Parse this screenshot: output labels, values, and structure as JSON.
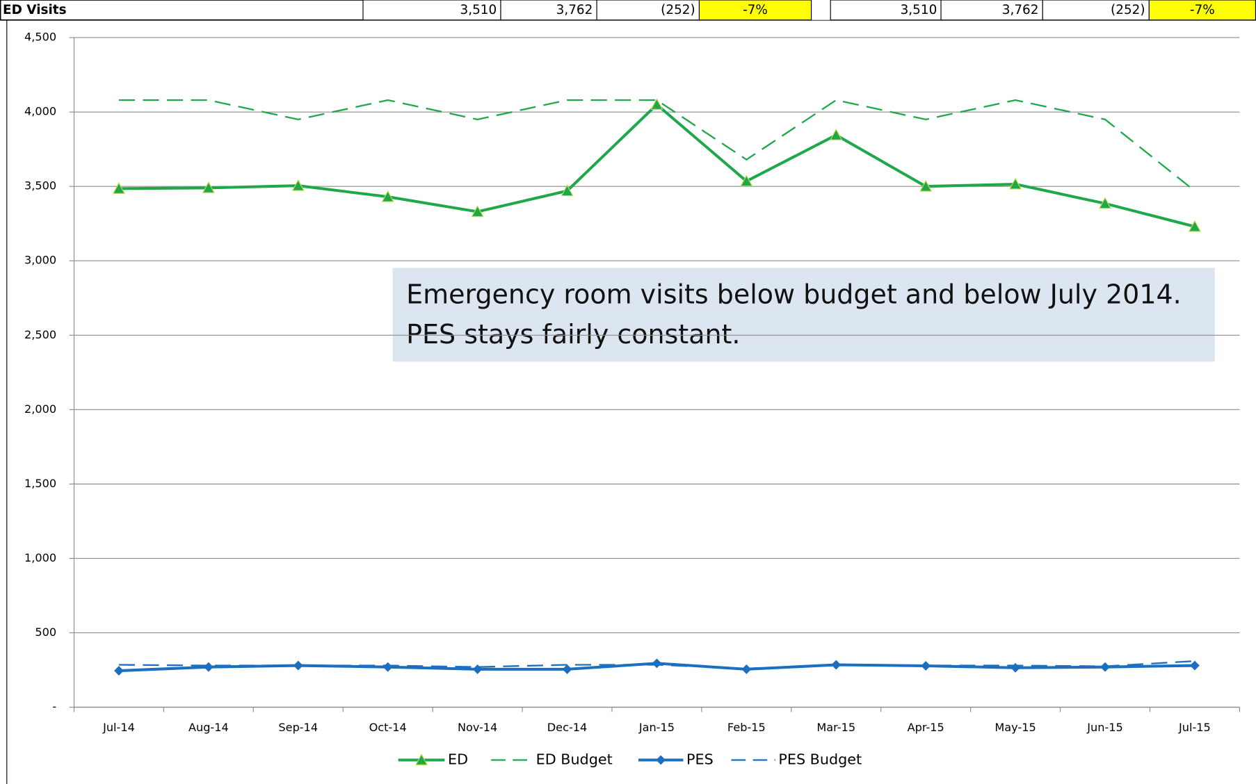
{
  "header": {
    "label": "ED Visits",
    "cells": [
      "3,510",
      "3,762",
      "(252)",
      "-7%",
      "3,510",
      "3,762",
      "(252)",
      "-7%"
    ]
  },
  "chart_data": {
    "type": "line",
    "categories": [
      "Jul-14",
      "Aug-14",
      "Sep-14",
      "Oct-14",
      "Nov-14",
      "Dec-14",
      "Jan-15",
      "Feb-15",
      "Mar-15",
      "Apr-15",
      "May-15",
      "Jun-15",
      "Jul-15"
    ],
    "series": [
      {
        "name": "ED",
        "color": "#1fa84a",
        "marker": "triangle",
        "dashed": false,
        "values": [
          3485,
          3490,
          3505,
          3430,
          3330,
          3470,
          4050,
          3535,
          3845,
          3500,
          3515,
          3385,
          3230
        ]
      },
      {
        "name": "ED Budget",
        "color": "#1fa84a",
        "marker": "none",
        "dashed": true,
        "values": [
          4080,
          4080,
          3950,
          4080,
          3950,
          4080,
          4080,
          3680,
          4080,
          3950,
          4080,
          3950,
          3470
        ]
      },
      {
        "name": "PES",
        "color": "#1a6fc0",
        "marker": "diamond",
        "dashed": false,
        "values": [
          245,
          270,
          280,
          270,
          255,
          255,
          295,
          255,
          285,
          278,
          265,
          270,
          280
        ]
      },
      {
        "name": "PES Budget",
        "color": "#1a6fc0",
        "marker": "none",
        "dashed": true,
        "values": [
          285,
          280,
          280,
          280,
          270,
          285,
          285,
          260,
          285,
          280,
          280,
          275,
          310
        ]
      }
    ],
    "ylim": [
      0,
      4500
    ],
    "yticks": [
      {
        "value": 0,
        "label": "-"
      },
      500,
      {
        "value": 1000,
        "label": "1,000"
      },
      {
        "value": 1500,
        "label": "1,500"
      },
      {
        "value": 2000,
        "label": "2,000"
      },
      {
        "value": 2500,
        "label": "2,500"
      },
      {
        "value": 3000,
        "label": "3,000"
      },
      {
        "value": 3500,
        "label": "3,500"
      },
      {
        "value": 4000,
        "label": "4,000"
      },
      {
        "value": 4500,
        "label": "4,500"
      }
    ],
    "grid": true,
    "legend": "bottom",
    "annotation": [
      "Emergency room visits below budget and below July 2014.",
      "PES stays fairly constant."
    ]
  }
}
